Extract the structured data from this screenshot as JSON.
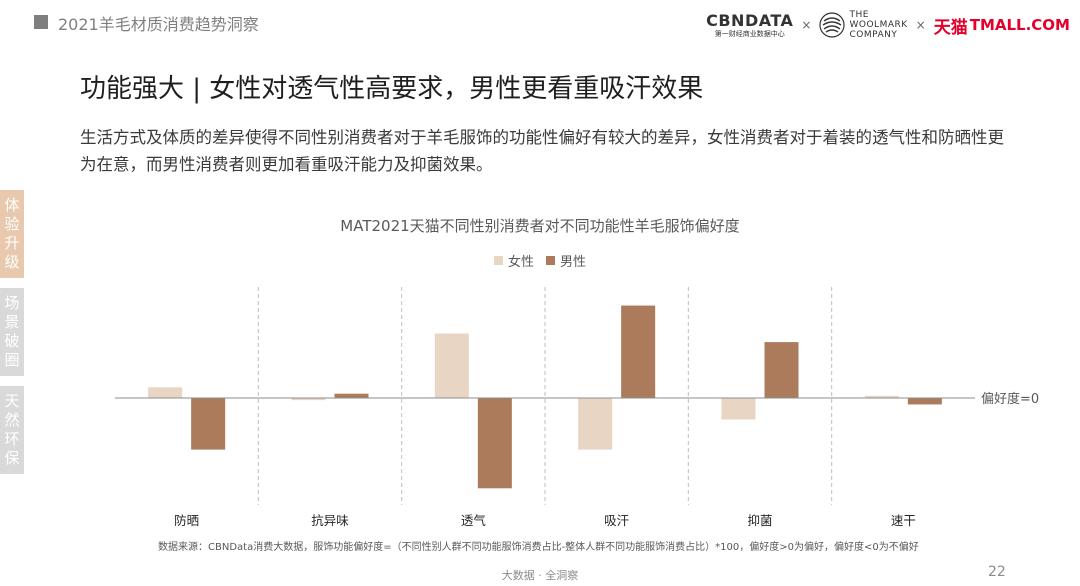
{
  "header": {
    "report_title": "2021羊毛材质消费趋势洞察",
    "logo_cbn": "CBNDATA",
    "logo_cbn_sub": "第一财经商业数据中心",
    "times_sign": "×",
    "logo_woolmark": [
      "THE",
      "WOOLMARK",
      "COMPANY"
    ],
    "logo_tmall_cn": "天猫",
    "logo_tmall_en": "TMALL.COM"
  },
  "slide": {
    "title": "功能强大 | 女性对透气性高要求，男性更看重吸汗效果",
    "description": "生活方式及体质的差异使得不同性别消费者对于羊毛服饰的功能性偏好有较大的差异，女性消费者对于着装的透气性和防晒性更为在意，而男性消费者则更加看重吸汗能力及抑菌效果。"
  },
  "side_tabs": [
    {
      "label": "体验升级",
      "active": true
    },
    {
      "label": "场景破圈",
      "active": false
    },
    {
      "label": "天然环保",
      "active": false
    }
  ],
  "chart_data": {
    "type": "bar",
    "title": "MAT2021天猫不同性别消费者对不同功能性羊毛服饰偏好度",
    "categories": [
      "防晒",
      "抗异味",
      "透气",
      "吸汗",
      "抑菌",
      "速干"
    ],
    "series": [
      {
        "name": "女性",
        "color": "#e8d5c4",
        "values": [
          5,
          -1,
          30,
          -24,
          -10,
          1
        ]
      },
      {
        "name": "男性",
        "color": "#ab7b5c",
        "values": [
          -24,
          2,
          -42,
          43,
          26,
          -3
        ]
      }
    ],
    "reference_line_label": "偏好度=0",
    "ylim": [
      -55,
      50
    ],
    "grid": false,
    "legend_position": "top-center",
    "source_note": "数据来源：CBNData消费大数据，服饰功能偏好度=（不同性别人群不同功能服饰消费占比-整体人群不同功能服饰消费占比）*100，偏好度>0为偏好，偏好度<0为不偏好"
  },
  "footer": {
    "tagline": "大数据 · 全洞察",
    "page_number": "22"
  },
  "colors": {
    "accent_tab": "#e8c9ad",
    "inactive_tab": "#d9d9d9",
    "female": "#e8d5c4",
    "male": "#ab7b5c",
    "tmall_red": "#e4002b"
  }
}
